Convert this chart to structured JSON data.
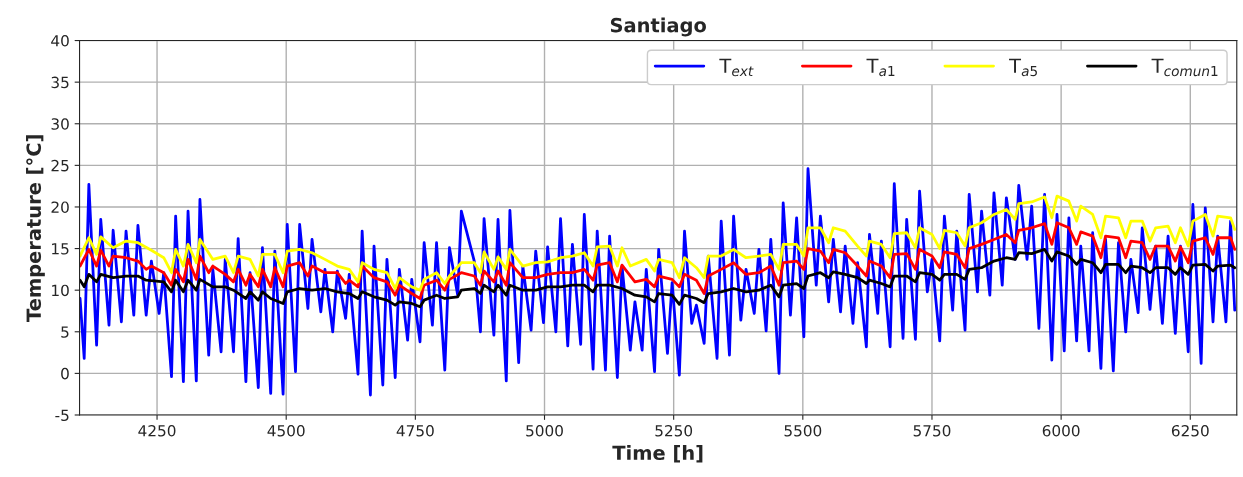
{
  "chart_data": {
    "type": "line",
    "title": "Santiago",
    "xlabel": "Time [h]",
    "ylabel": "Temperature [°C]",
    "xlim": [
      4100,
      6340
    ],
    "ylim": [
      -5,
      40
    ],
    "xticks": [
      4250,
      4500,
      4750,
      5000,
      5250,
      5500,
      5750,
      6000,
      6250
    ],
    "yticks": [
      -5,
      0,
      5,
      10,
      15,
      20,
      25,
      30,
      35,
      40
    ],
    "grid": true,
    "legend": "top right",
    "line_style": "solid",
    "marker": "none",
    "series": [
      {
        "name": "T$_{ext}$",
        "color": "#0000ff",
        "x": [
          4101,
          4109,
          4118,
          4133,
          4141,
          4157,
          4165,
          4181,
          4190,
          4205,
          4213,
          4229,
          4239,
          4254,
          4263,
          4278,
          4286,
          4301,
          4310,
          4326,
          4333,
          4350,
          4358,
          4374,
          4382,
          4398,
          4407,
          4422,
          4430,
          4446,
          4454,
          4470,
          4478,
          4494,
          4502,
          4518,
          4526,
          4542,
          4550,
          4567,
          4575,
          4590,
          4599,
          4615,
          4622,
          4639,
          4647,
          4663,
          4670,
          4687,
          4695,
          4711,
          4719,
          4735,
          4743,
          4759,
          4767,
          4783,
          4791,
          4807,
          4816,
          4832,
          4839,
          4864,
          4876,
          4883,
          4902,
          4910,
          4926,
          4933,
          4950,
          4958,
          4974,
          4983,
          4998,
          5006,
          5022,
          5031,
          5045,
          5054,
          5070,
          5077,
          5094,
          5102,
          5118,
          5126,
          5141,
          5150,
          5166,
          5175,
          5189,
          5197,
          5213,
          5221,
          5238,
          5247,
          5261,
          5271,
          5285,
          5294,
          5309,
          5317,
          5334,
          5342,
          5358,
          5366,
          5380,
          5390,
          5406,
          5415,
          5429,
          5438,
          5454,
          5462,
          5476,
          5488,
          5502,
          5510,
          5526,
          5534,
          5550,
          5559,
          5573,
          5582,
          5597,
          5606,
          5623,
          5629,
          5645,
          5652,
          5669,
          5677,
          5694,
          5701,
          5718,
          5726,
          5741,
          5750,
          5765,
          5774,
          5790,
          5798,
          5814,
          5822,
          5838,
          5846,
          5862,
          5870,
          5886,
          5894,
          5911,
          5918,
          5934,
          5943,
          5957,
          5968,
          5982,
          5992,
          6006,
          6015,
          6030,
          6038,
          6054,
          6061,
          6077,
          6086,
          6101,
          6111,
          6125,
          6135,
          6149,
          6157,
          6172,
          6183,
          6196,
          6207,
          6221,
          6231,
          6246,
          6255,
          6271,
          6279,
          6294,
          6303,
          6319,
          6328,
          6336
        ],
        "values": [
          9.0,
          1.8,
          22.7,
          3.4,
          18.5,
          5.8,
          17.2,
          6.2,
          17.1,
          7.0,
          17.8,
          7.0,
          13.5,
          7.2,
          12.1,
          -0.4,
          18.9,
          -1.0,
          19.5,
          -0.9,
          20.9,
          2.2,
          12.5,
          2.6,
          13.7,
          2.6,
          16.2,
          -1.0,
          12.1,
          -1.7,
          15.1,
          -2.4,
          14.7,
          -2.5,
          17.9,
          0.2,
          17.9,
          7.8,
          16.1,
          7.4,
          12.5,
          5.0,
          12.3,
          6.6,
          11.9,
          -0.1,
          17.1,
          -2.6,
          15.3,
          -1.4,
          13.7,
          -0.5,
          12.5,
          4.0,
          11.3,
          3.8,
          15.7,
          5.8,
          15.7,
          0.4,
          15.1,
          9.4,
          19.5,
          13.5,
          5.0,
          18.6,
          4.6,
          18.5,
          -0.9,
          19.6,
          1.3,
          12.9,
          5.2,
          14.7,
          6.1,
          15.2,
          5.0,
          18.6,
          3.3,
          15.5,
          3.5,
          19.1,
          0.5,
          17.1,
          0.4,
          16.5,
          -0.5,
          12.9,
          2.8,
          8.6,
          2.8,
          12.5,
          0.2,
          14.9,
          2.4,
          10.9,
          -0.2,
          17.1,
          6.0,
          8.2,
          3.6,
          14.1,
          1.8,
          18.3,
          2.2,
          18.9,
          6.4,
          12.5,
          7.2,
          14.9,
          5.1,
          16.1,
          0.0,
          20.5,
          7.0,
          18.7,
          4.4,
          24.6,
          10.6,
          18.9,
          8.6,
          16.1,
          7.4,
          15.3,
          6.0,
          13.3,
          3.2,
          16.7,
          7.2,
          15.9,
          3.2,
          22.8,
          4.2,
          18.5,
          4.1,
          21.9,
          9.8,
          13.7,
          3.9,
          18.9,
          7.6,
          17.1,
          5.2,
          21.5,
          9.8,
          19.5,
          9.4,
          21.7,
          10.6,
          21.1,
          13.7,
          22.6,
          13.7,
          20.1,
          5.4,
          21.5,
          1.6,
          19.1,
          2.7,
          18.7,
          3.9,
          15.3,
          2.7,
          16.9,
          0.6,
          16.1,
          0.3,
          15.7,
          5.0,
          13.7,
          7.3,
          17.5,
          7.7,
          15.3,
          6.0,
          16.5,
          4.8,
          15.3,
          2.6,
          20.3,
          1.2,
          19.9,
          6.2,
          16.5,
          6.2,
          18.3,
          7.6
        ]
      },
      {
        "name": "T$_{a1}$",
        "color": "#ff0000",
        "x": [
          4101,
          4118,
          4133,
          4141,
          4157,
          4165,
          4190,
          4213,
          4229,
          4239,
          4263,
          4278,
          4286,
          4301,
          4310,
          4326,
          4333,
          4350,
          4358,
          4382,
          4398,
          4407,
          4422,
          4430,
          4446,
          4454,
          4470,
          4478,
          4494,
          4502,
          4526,
          4542,
          4550,
          4575,
          4599,
          4615,
          4622,
          4639,
          4647,
          4670,
          4695,
          4711,
          4719,
          4743,
          4759,
          4767,
          4791,
          4807,
          4816,
          4839,
          4864,
          4876,
          4883,
          4902,
          4910,
          4926,
          4933,
          4958,
          4983,
          5006,
          5031,
          5054,
          5077,
          5094,
          5102,
          5126,
          5141,
          5150,
          5175,
          5197,
          5213,
          5221,
          5247,
          5261,
          5271,
          5294,
          5309,
          5317,
          5342,
          5366,
          5390,
          5415,
          5438,
          5454,
          5462,
          5488,
          5502,
          5510,
          5534,
          5550,
          5559,
          5582,
          5606,
          5623,
          5629,
          5652,
          5669,
          5677,
          5701,
          5718,
          5726,
          5750,
          5765,
          5774,
          5798,
          5814,
          5822,
          5846,
          5870,
          5894,
          5911,
          5918,
          5943,
          5968,
          5982,
          5992,
          6015,
          6030,
          6038,
          6061,
          6077,
          6086,
          6111,
          6125,
          6135,
          6157,
          6172,
          6183,
          6207,
          6221,
          6231,
          6246,
          6255,
          6279,
          6294,
          6303,
          6328,
          6336
        ],
        "values": [
          12.9,
          14.9,
          12.9,
          14.8,
          12.9,
          14.1,
          13.9,
          13.5,
          12.5,
          12.9,
          12.1,
          10.6,
          12.5,
          11.0,
          13.7,
          11.3,
          14.1,
          12.1,
          12.9,
          11.9,
          11.0,
          12.5,
          10.6,
          11.9,
          10.4,
          12.5,
          10.4,
          12.7,
          10.4,
          12.9,
          13.3,
          11.7,
          12.9,
          12.1,
          12.1,
          10.8,
          11.2,
          10.4,
          12.9,
          11.5,
          11.0,
          9.4,
          10.6,
          9.6,
          9.0,
          10.6,
          11.2,
          10.0,
          11.3,
          12.1,
          11.7,
          10.6,
          12.3,
          11.0,
          12.3,
          10.6,
          13.3,
          11.5,
          11.5,
          11.9,
          12.1,
          12.1,
          12.5,
          11.2,
          13.0,
          13.3,
          11.0,
          13.0,
          11.0,
          11.3,
          10.4,
          11.7,
          11.3,
          10.4,
          11.9,
          11.2,
          9.6,
          11.7,
          12.5,
          13.3,
          11.9,
          12.1,
          12.9,
          10.6,
          13.3,
          13.5,
          12.5,
          15.0,
          14.7,
          13.3,
          14.9,
          14.5,
          12.9,
          11.7,
          13.5,
          12.9,
          11.5,
          14.3,
          14.4,
          12.5,
          14.9,
          14.1,
          12.7,
          14.6,
          14.3,
          12.7,
          15.0,
          15.5,
          16.1,
          16.7,
          15.7,
          17.2,
          17.5,
          18.0,
          15.5,
          18.1,
          17.5,
          15.5,
          17.0,
          16.5,
          13.9,
          16.5,
          16.3,
          13.9,
          15.9,
          15.7,
          13.7,
          15.3,
          15.3,
          13.5,
          15.2,
          13.3,
          15.9,
          16.3,
          14.3,
          16.3,
          16.3,
          14.9
        ]
      },
      {
        "name": "T$_{a5}$",
        "color": "#ffff00",
        "x": [
          4101,
          4118,
          4133,
          4141,
          4165,
          4190,
          4213,
          4239,
          4263,
          4278,
          4286,
          4301,
          4310,
          4326,
          4333,
          4358,
          4382,
          4398,
          4407,
          4430,
          4446,
          4454,
          4478,
          4494,
          4502,
          4526,
          4550,
          4575,
          4599,
          4622,
          4639,
          4647,
          4670,
          4695,
          4711,
          4719,
          4743,
          4759,
          4767,
          4791,
          4807,
          4816,
          4839,
          4864,
          4876,
          4883,
          4902,
          4910,
          4926,
          4933,
          4958,
          4983,
          5006,
          5031,
          5054,
          5077,
          5094,
          5102,
          5126,
          5141,
          5150,
          5166,
          5197,
          5213,
          5221,
          5247,
          5261,
          5271,
          5294,
          5309,
          5317,
          5342,
          5366,
          5390,
          5415,
          5438,
          5454,
          5462,
          5488,
          5502,
          5510,
          5534,
          5550,
          5559,
          5582,
          5606,
          5623,
          5629,
          5652,
          5669,
          5677,
          5701,
          5718,
          5726,
          5750,
          5765,
          5774,
          5798,
          5814,
          5822,
          5846,
          5870,
          5894,
          5911,
          5918,
          5943,
          5968,
          5982,
          5992,
          6015,
          6030,
          6038,
          6061,
          6077,
          6086,
          6111,
          6125,
          6135,
          6157,
          6172,
          6183,
          6207,
          6221,
          6231,
          6246,
          6255,
          6279,
          6294,
          6303,
          6328,
          6336
        ],
        "values": [
          14.1,
          16.3,
          14.3,
          16.4,
          15.1,
          15.9,
          15.7,
          14.8,
          13.9,
          12.1,
          14.9,
          12.9,
          15.5,
          13.3,
          16.1,
          13.7,
          14.1,
          12.1,
          14.1,
          13.7,
          11.7,
          14.3,
          14.3,
          12.1,
          14.7,
          14.9,
          14.5,
          13.7,
          12.9,
          12.5,
          11.0,
          13.3,
          12.5,
          12.1,
          10.2,
          11.5,
          10.4,
          10.0,
          11.3,
          12.1,
          10.8,
          11.7,
          13.3,
          13.3,
          12.1,
          14.6,
          12.5,
          14.0,
          12.5,
          14.9,
          12.9,
          13.3,
          13.4,
          13.9,
          14.1,
          14.5,
          12.9,
          15.2,
          15.3,
          12.9,
          15.1,
          12.9,
          13.7,
          12.3,
          13.7,
          13.3,
          11.5,
          13.9,
          12.7,
          11.5,
          14.1,
          14.1,
          14.9,
          13.9,
          14.1,
          14.3,
          12.5,
          15.5,
          15.5,
          14.1,
          17.5,
          17.5,
          15.7,
          17.5,
          17.1,
          15.3,
          14.1,
          15.9,
          15.5,
          13.9,
          16.8,
          16.9,
          15.1,
          17.5,
          16.7,
          15.0,
          17.2,
          16.9,
          15.3,
          17.5,
          18.1,
          19.1,
          19.7,
          18.5,
          20.4,
          20.6,
          21.2,
          18.7,
          21.3,
          20.7,
          18.3,
          20.1,
          19.1,
          16.3,
          18.9,
          18.7,
          16.3,
          18.3,
          18.3,
          15.9,
          17.5,
          17.7,
          15.7,
          17.5,
          15.3,
          18.3,
          19.1,
          16.5,
          18.9,
          18.7,
          17.3
        ]
      },
      {
        "name": "T$_{comun1}$",
        "color": "#000000",
        "x": [
          4101,
          4109,
          4118,
          4133,
          4141,
          4165,
          4190,
          4213,
          4229,
          4263,
          4278,
          4286,
          4301,
          4310,
          4326,
          4333,
          4358,
          4382,
          4398,
          4422,
          4430,
          4446,
          4454,
          4470,
          4494,
          4502,
          4526,
          4550,
          4575,
          4599,
          4622,
          4639,
          4647,
          4670,
          4695,
          4711,
          4719,
          4743,
          4759,
          4767,
          4791,
          4807,
          4832,
          4839,
          4864,
          4876,
          4883,
          4902,
          4910,
          4926,
          4933,
          4958,
          4983,
          5006,
          5031,
          5054,
          5077,
          5094,
          5102,
          5126,
          5150,
          5175,
          5197,
          5213,
          5221,
          5247,
          5261,
          5271,
          5294,
          5309,
          5317,
          5342,
          5366,
          5390,
          5415,
          5438,
          5454,
          5462,
          5488,
          5502,
          5510,
          5534,
          5550,
          5559,
          5582,
          5606,
          5623,
          5629,
          5652,
          5669,
          5677,
          5701,
          5718,
          5726,
          5750,
          5765,
          5774,
          5798,
          5814,
          5822,
          5846,
          5870,
          5894,
          5911,
          5918,
          5943,
          5968,
          5982,
          5992,
          6015,
          6030,
          6038,
          6061,
          6077,
          6086,
          6111,
          6125,
          6135,
          6157,
          6172,
          6183,
          6207,
          6221,
          6231,
          6246,
          6255,
          6279,
          6294,
          6303,
          6328,
          6336
        ],
        "values": [
          11.2,
          10.4,
          11.9,
          11.0,
          11.9,
          11.5,
          11.7,
          11.7,
          11.2,
          11.0,
          9.8,
          11.2,
          9.8,
          11.2,
          10.0,
          11.3,
          10.4,
          10.4,
          10.0,
          9.0,
          9.8,
          8.8,
          9.8,
          9.0,
          8.4,
          9.8,
          10.2,
          10.0,
          10.2,
          9.8,
          9.6,
          9.0,
          9.8,
          9.2,
          8.8,
          8.2,
          8.6,
          8.4,
          8.0,
          8.8,
          9.4,
          9.0,
          9.2,
          10.0,
          10.2,
          9.6,
          10.6,
          9.8,
          10.6,
          9.4,
          10.6,
          10.0,
          10.0,
          10.4,
          10.4,
          10.6,
          10.6,
          9.8,
          10.6,
          10.6,
          10.2,
          9.4,
          9.2,
          8.6,
          9.6,
          9.4,
          8.3,
          9.4,
          9.0,
          8.5,
          9.6,
          9.8,
          10.2,
          9.8,
          10.0,
          10.6,
          9.2,
          10.6,
          10.8,
          10.2,
          11.7,
          12.1,
          11.5,
          12.2,
          11.9,
          11.5,
          10.8,
          11.2,
          10.8,
          10.4,
          11.7,
          11.7,
          11.0,
          12.1,
          11.9,
          11.2,
          11.9,
          11.9,
          11.3,
          12.5,
          12.7,
          13.5,
          13.9,
          13.7,
          14.5,
          14.4,
          14.9,
          13.5,
          14.6,
          14.1,
          13.1,
          13.7,
          13.3,
          12.1,
          13.1,
          13.1,
          12.1,
          12.9,
          12.7,
          12.1,
          12.7,
          12.7,
          11.9,
          12.7,
          11.9,
          13.0,
          13.1,
          12.3,
          12.9,
          13.0,
          12.7
        ]
      }
    ]
  }
}
